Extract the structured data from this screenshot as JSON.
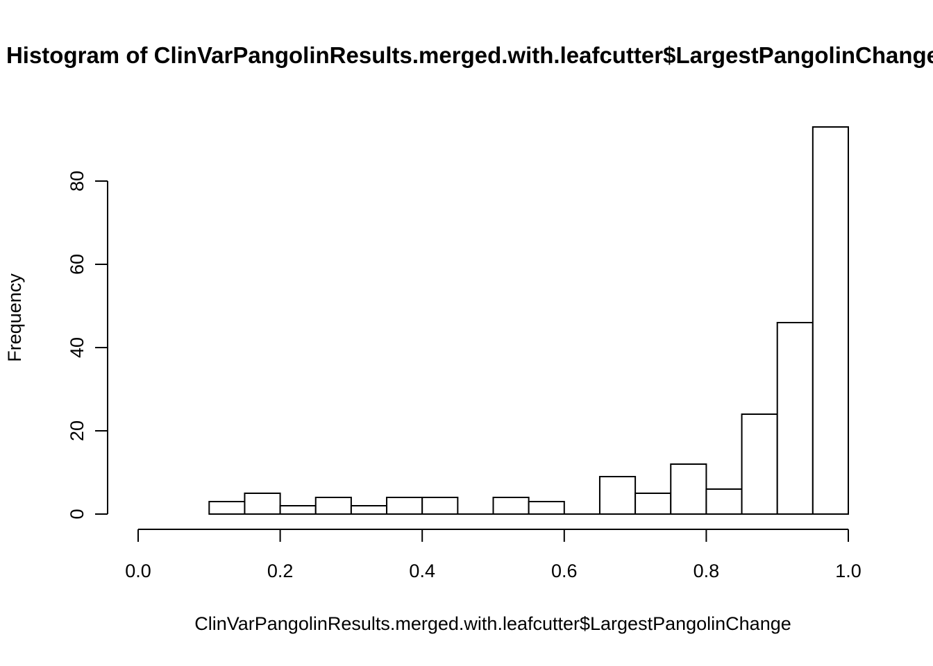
{
  "chart_data": {
    "type": "bar",
    "subtype": "histogram",
    "title": "Histogram of ClinVarPangolinResults.merged.with.leafcutter$LargestPangolinChange",
    "xlabel": "ClinVarPangolinResults.merged.with.leafcutter$LargestPangolinChange",
    "ylabel": "Frequency",
    "bin_start": 0.1,
    "bin_width": 0.05,
    "bin_edges": [
      0.1,
      0.15,
      0.2,
      0.25,
      0.3,
      0.35,
      0.4,
      0.45,
      0.5,
      0.55,
      0.6,
      0.65,
      0.7,
      0.75,
      0.8,
      0.85,
      0.9,
      0.95,
      1.0
    ],
    "counts": [
      3,
      5,
      2,
      4,
      2,
      4,
      4,
      0,
      4,
      3,
      0,
      9,
      5,
      12,
      6,
      24,
      46,
      93
    ],
    "xlim": [
      0.0,
      1.0
    ],
    "ylim": [
      0,
      93
    ],
    "x_ticks": {
      "values": [
        0.0,
        0.2,
        0.4,
        0.6,
        0.8,
        1.0
      ],
      "labels": [
        "0.0",
        "0.2",
        "0.4",
        "0.6",
        "0.8",
        "1.0"
      ]
    },
    "y_ticks": {
      "values": [
        0,
        20,
        40,
        60,
        80
      ],
      "labels": [
        "0",
        "20",
        "40",
        "60",
        "80"
      ]
    },
    "grid": false,
    "legend": null,
    "colors": {
      "stroke": "#000000",
      "background": "#ffffff",
      "bar_fill": "#ffffff"
    }
  }
}
